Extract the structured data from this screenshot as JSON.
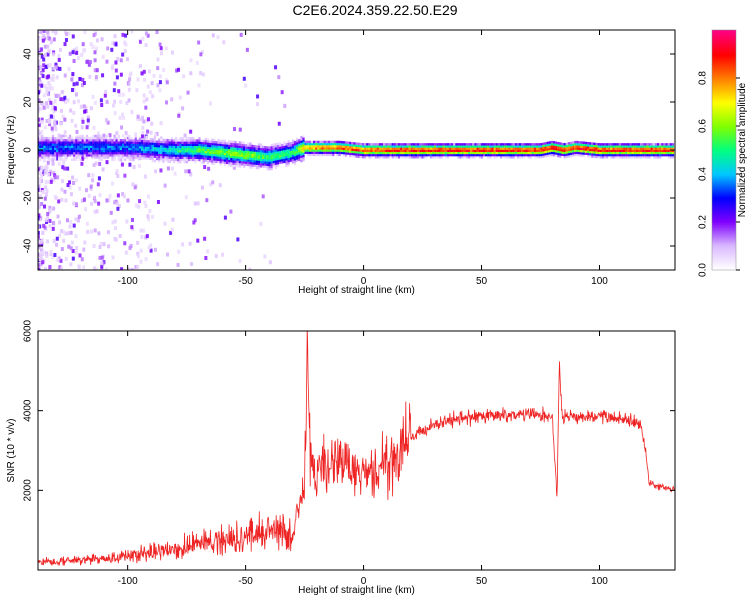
{
  "title": "C2E6.2024.359.22.50.E29",
  "chart_data": [
    {
      "type": "heatmap",
      "xlabel": "Height of straight line (km)",
      "ylabel": "Frequency (Hz)",
      "xlim": [
        -138,
        132
      ],
      "ylim": [
        -50,
        50
      ],
      "xticks": [
        -100,
        -50,
        0,
        50,
        100
      ],
      "yticks": [
        -40,
        -20,
        0,
        20,
        40
      ],
      "colorbar": {
        "label": "Normalized spectral amplitude",
        "range": [
          0,
          1
        ],
        "ticks": [
          "0.0",
          "0.2",
          "0.4",
          "0.6",
          "0.8"
        ],
        "colormap": [
          "#ffffff",
          "#d9b8ff",
          "#7f00ff",
          "#0000ff",
          "#00c8ff",
          "#00ff80",
          "#80ff00",
          "#ffff00",
          "#ff8000",
          "#ff0000",
          "#ff0080"
        ]
      },
      "ridge": {
        "x": [
          -138,
          -100,
          -80,
          -70,
          -60,
          -50,
          -40,
          -30,
          -25,
          -20,
          -10,
          0,
          20,
          50,
          75,
          80,
          85,
          90,
          100,
          110,
          132
        ],
        "freq": [
          1,
          1,
          0,
          0,
          -1,
          -2,
          -3,
          -1,
          1,
          1,
          1,
          0,
          0,
          0,
          0,
          1,
          0,
          1,
          0,
          0,
          0
        ],
        "amplitude": [
          0.35,
          0.35,
          0.45,
          0.55,
          0.6,
          0.6,
          0.55,
          0.5,
          0.75,
          0.8,
          0.85,
          0.85,
          0.9,
          0.9,
          0.9,
          0.95,
          0.9,
          0.9,
          0.9,
          0.9,
          0.9
        ]
      }
    },
    {
      "type": "line",
      "xlabel": "Height of straight line (km)",
      "ylabel": "SNR (10 * v/v)",
      "xlim": [
        -138,
        132
      ],
      "ylim": [
        0,
        6000
      ],
      "xticks": [
        -100,
        -50,
        0,
        50,
        100
      ],
      "yticks": [
        2000,
        4000,
        6000
      ],
      "color": "#ee2222",
      "series": [
        {
          "x": [
            -138,
            -120,
            -105,
            -95,
            -90,
            -80,
            -75,
            -70,
            -60,
            -50,
            -40,
            -35,
            -30,
            -27,
            -25,
            -24,
            -23,
            -22,
            -20,
            -15,
            -10,
            -5,
            0,
            5,
            10,
            15,
            20,
            25,
            30,
            40,
            50,
            60,
            70,
            80,
            82,
            83,
            84,
            86,
            90,
            100,
            110,
            117,
            119,
            121,
            125,
            132
          ],
          "y": [
            200,
            250,
            300,
            400,
            450,
            500,
            600,
            650,
            750,
            850,
            1000,
            950,
            800,
            1800,
            2000,
            5500,
            3500,
            2300,
            2500,
            2600,
            2800,
            2500,
            2300,
            2500,
            2700,
            3000,
            3300,
            3500,
            3650,
            3800,
            3850,
            3900,
            3900,
            3850,
            1800,
            5200,
            3900,
            3850,
            3850,
            3850,
            3800,
            3700,
            3300,
            2200,
            2100,
            2050
          ]
        }
      ]
    }
  ]
}
